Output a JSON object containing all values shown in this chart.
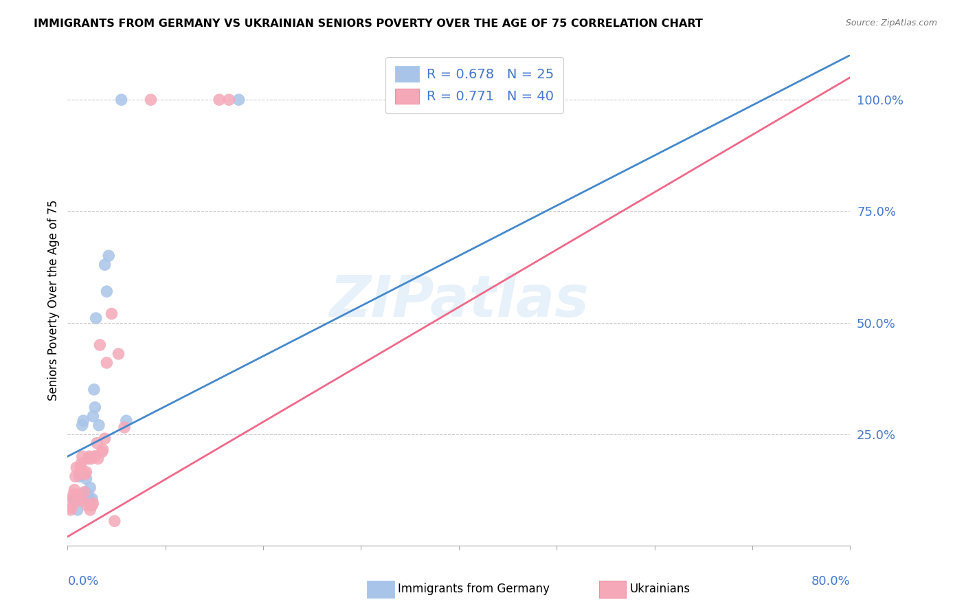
{
  "title": "IMMIGRANTS FROM GERMANY VS UKRAINIAN SENIORS POVERTY OVER THE AGE OF 75 CORRELATION CHART",
  "source": "Source: ZipAtlas.com",
  "ylabel": "Seniors Poverty Over the Age of 75",
  "watermark": "ZIPatlas",
  "legend_blue_r": "0.678",
  "legend_blue_n": "25",
  "legend_pink_r": "0.771",
  "legend_pink_n": "40",
  "legend_blue_label": "Immigrants from Germany",
  "legend_pink_label": "Ukrainians",
  "blue_color": "#a8c4e8",
  "pink_color": "#f5a8b8",
  "blue_line_color": "#4488cc",
  "pink_line_color": "#f06888",
  "blue_scatter": [
    [
      0.005,
      0.105
    ],
    [
      0.008,
      0.1
    ],
    [
      0.01,
      0.08
    ],
    [
      0.012,
      0.155
    ],
    [
      0.015,
      0.27
    ],
    [
      0.016,
      0.28
    ],
    [
      0.018,
      0.12
    ],
    [
      0.019,
      0.15
    ],
    [
      0.02,
      0.11
    ],
    [
      0.021,
      0.115
    ],
    [
      0.022,
      0.105
    ],
    [
      0.023,
      0.13
    ],
    [
      0.024,
      0.09
    ],
    [
      0.025,
      0.105
    ],
    [
      0.026,
      0.29
    ],
    [
      0.027,
      0.35
    ],
    [
      0.028,
      0.31
    ],
    [
      0.029,
      0.51
    ],
    [
      0.032,
      0.27
    ],
    [
      0.038,
      0.63
    ],
    [
      0.04,
      0.57
    ],
    [
      0.042,
      0.65
    ],
    [
      0.06,
      0.28
    ],
    [
      0.055,
      1.0
    ],
    [
      0.175,
      1.0
    ]
  ],
  "pink_scatter": [
    [
      0.003,
      0.08
    ],
    [
      0.004,
      0.085
    ],
    [
      0.005,
      0.105
    ],
    [
      0.006,
      0.115
    ],
    [
      0.007,
      0.125
    ],
    [
      0.008,
      0.155
    ],
    [
      0.009,
      0.175
    ],
    [
      0.01,
      0.1
    ],
    [
      0.011,
      0.115
    ],
    [
      0.012,
      0.16
    ],
    [
      0.013,
      0.175
    ],
    [
      0.014,
      0.185
    ],
    [
      0.015,
      0.2
    ],
    [
      0.016,
      0.1
    ],
    [
      0.017,
      0.12
    ],
    [
      0.018,
      0.16
    ],
    [
      0.019,
      0.165
    ],
    [
      0.02,
      0.09
    ],
    [
      0.021,
      0.195
    ],
    [
      0.022,
      0.2
    ],
    [
      0.023,
      0.08
    ],
    [
      0.024,
      0.195
    ],
    [
      0.025,
      0.09
    ],
    [
      0.026,
      0.095
    ],
    [
      0.027,
      0.2
    ],
    [
      0.028,
      0.2
    ],
    [
      0.03,
      0.23
    ],
    [
      0.031,
      0.195
    ],
    [
      0.033,
      0.45
    ],
    [
      0.035,
      0.21
    ],
    [
      0.036,
      0.215
    ],
    [
      0.038,
      0.24
    ],
    [
      0.04,
      0.41
    ],
    [
      0.045,
      0.52
    ],
    [
      0.048,
      0.055
    ],
    [
      0.052,
      0.43
    ],
    [
      0.058,
      0.265
    ],
    [
      0.085,
      1.0
    ],
    [
      0.155,
      1.0
    ],
    [
      0.165,
      1.0
    ]
  ],
  "blue_line_x": [
    0.0,
    0.8
  ],
  "blue_line_y": [
    0.2,
    1.1
  ],
  "pink_line_x": [
    0.0,
    0.8
  ],
  "pink_line_y": [
    0.02,
    1.05
  ],
  "xmin": 0.0,
  "xmax": 0.8,
  "ymin": 0.0,
  "ymax": 1.1,
  "right_yticklabels": [
    "",
    "25.0%",
    "50.0%",
    "75.0%",
    "100.0%"
  ],
  "ytick_positions": [
    0.0,
    0.25,
    0.5,
    0.75,
    1.0
  ],
  "xtick_positions": [
    0.0,
    0.1,
    0.2,
    0.3,
    0.4,
    0.5,
    0.6,
    0.7,
    0.8
  ],
  "axis_color": "#aaaaaa",
  "grid_color": "#cccccc",
  "right_axis_color": "#4477cc",
  "title_fontsize": 11.5,
  "source_fontsize": 9,
  "ylabel_fontsize": 12,
  "legend_fontsize": 14,
  "watermark_fontsize": 60,
  "watermark_color": "#d0e4f7",
  "watermark_alpha": 0.5
}
